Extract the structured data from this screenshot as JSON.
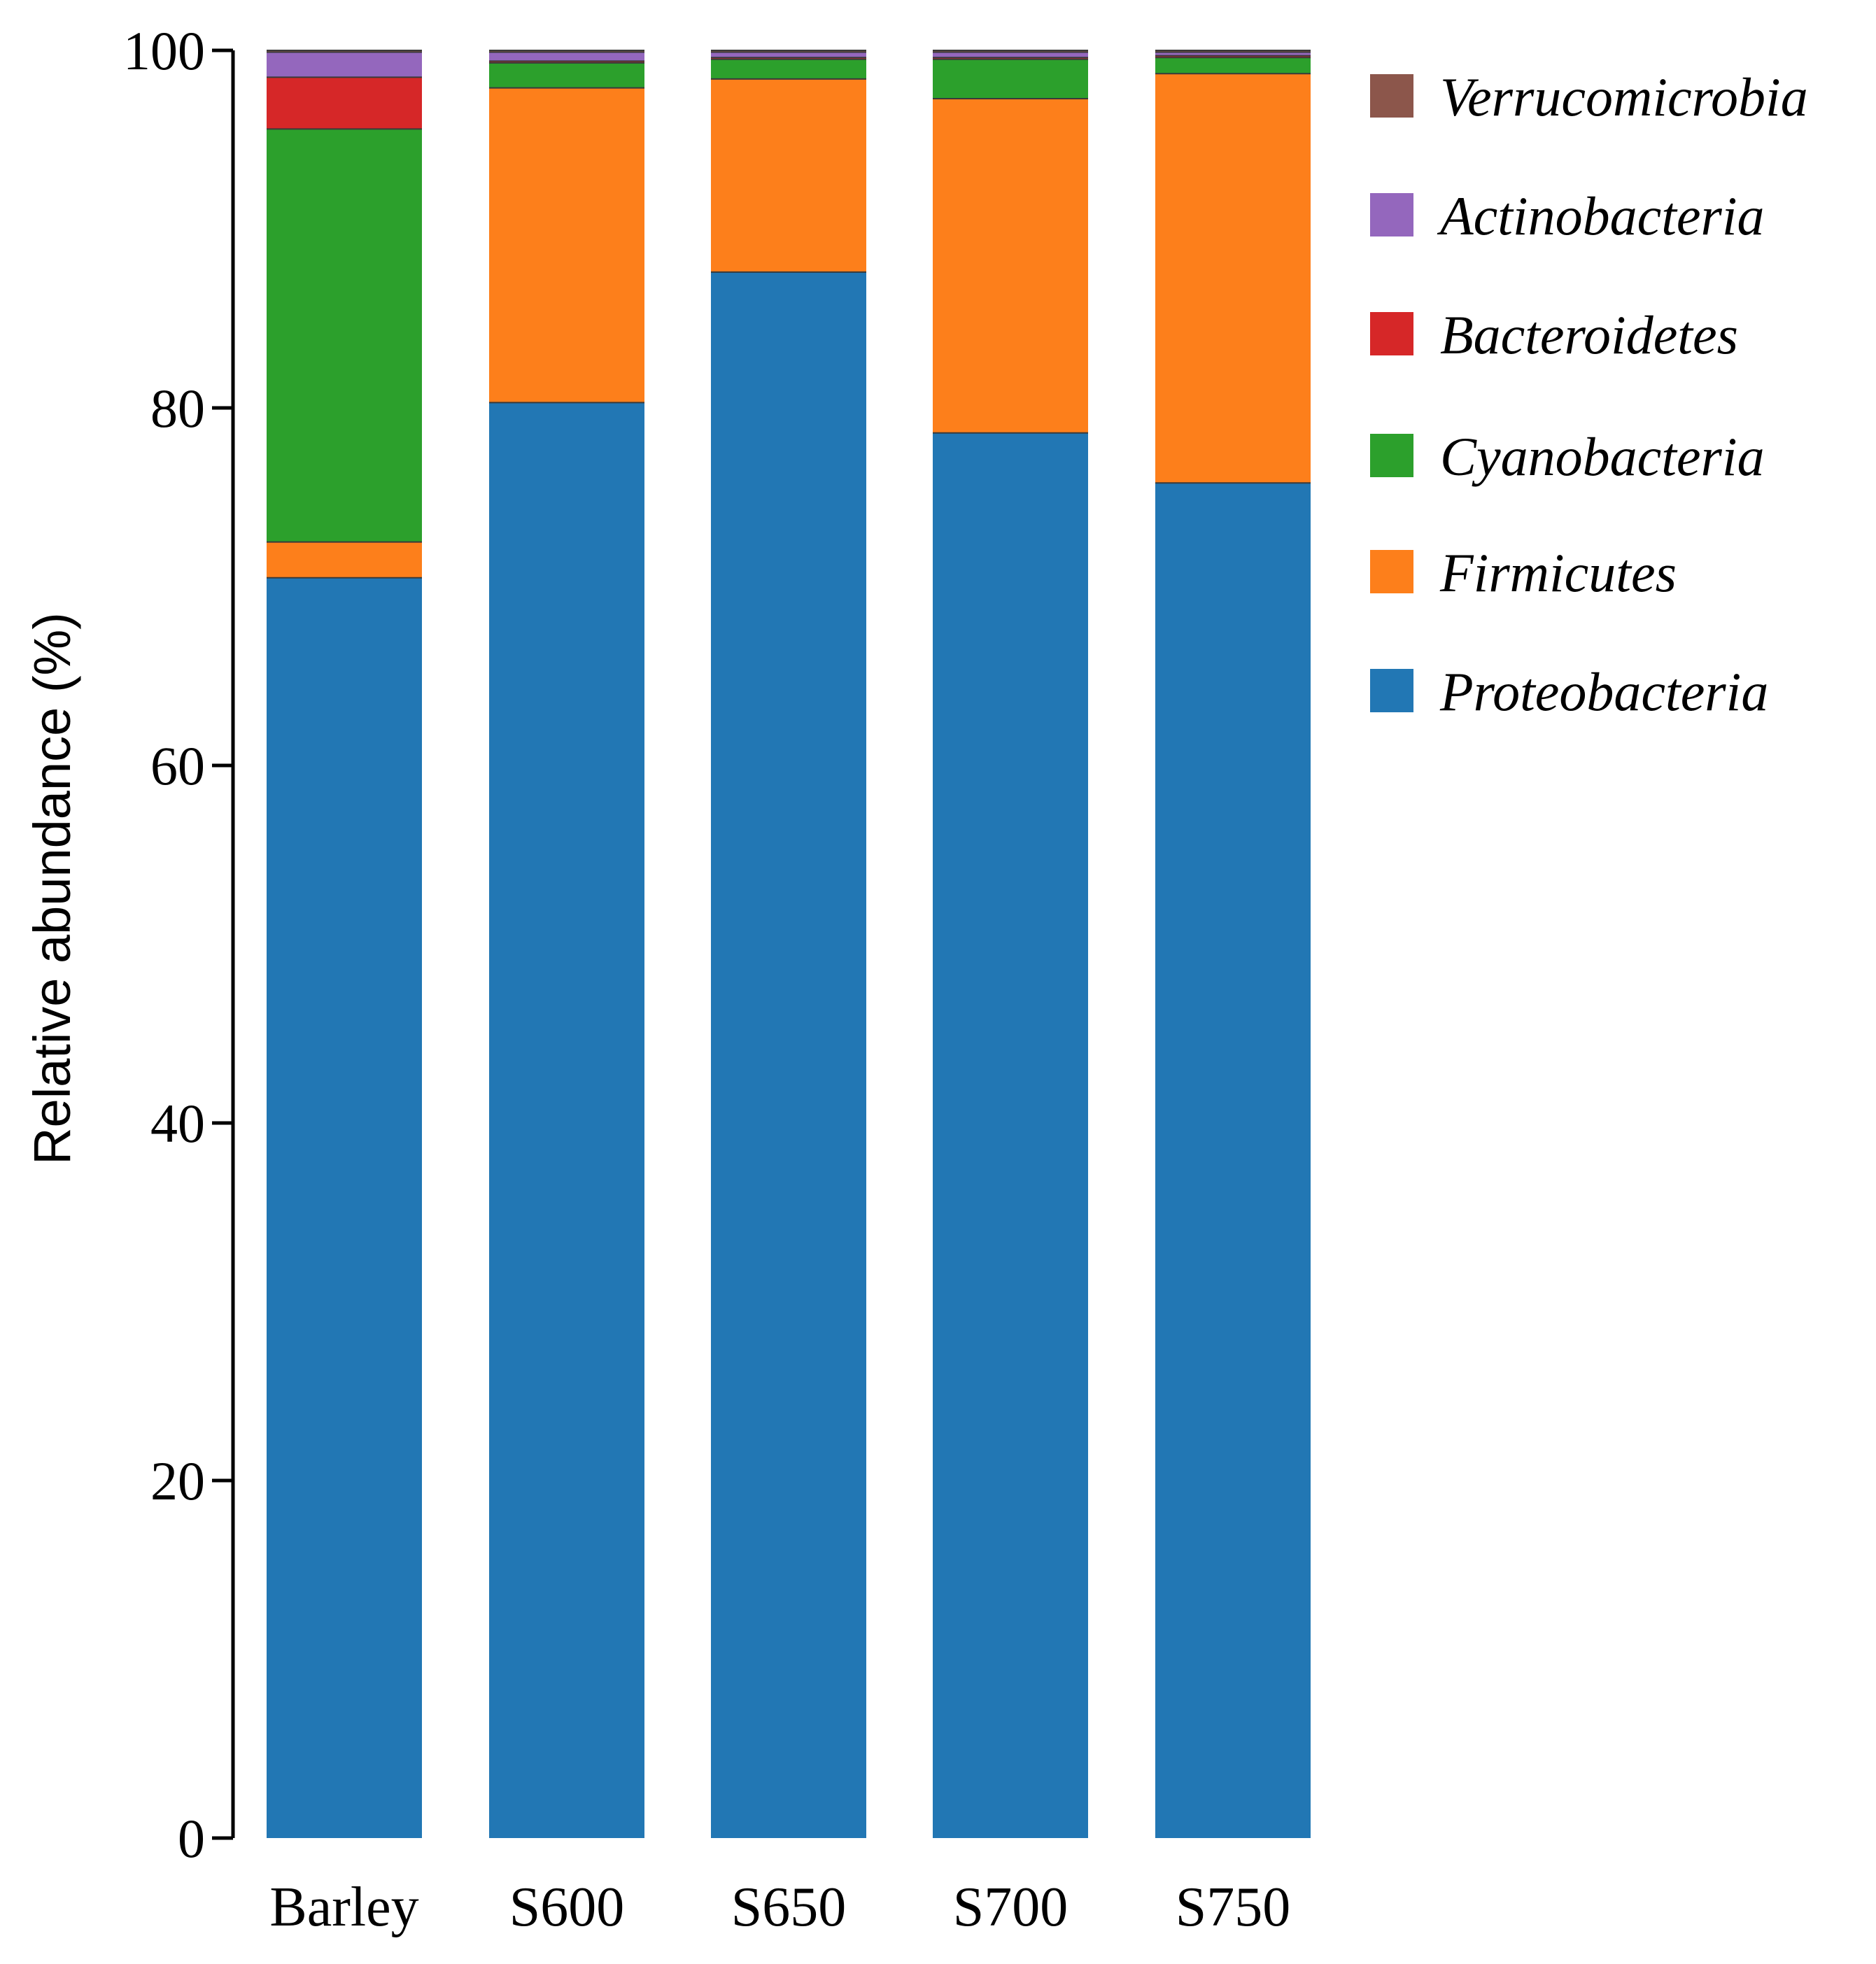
{
  "chart_data": {
    "type": "bar",
    "stacked": true,
    "title": "",
    "xlabel": "",
    "ylabel": "Relative abundance (%)",
    "ylim": [
      0,
      100
    ],
    "yticks": [
      0,
      20,
      40,
      60,
      80,
      100
    ],
    "grid": false,
    "legend_position": "top-right",
    "categories": [
      "Barley",
      "S600",
      "S650",
      "S700",
      "S750"
    ],
    "series": [
      {
        "name": "Proteobacteria",
        "color": "#2277b4",
        "values": [
          70.5,
          80.3,
          87.6,
          78.6,
          75.8
        ]
      },
      {
        "name": "Firmicutes",
        "color": "#fd7f1b",
        "values": [
          2.0,
          17.6,
          10.8,
          18.7,
          22.9
        ]
      },
      {
        "name": "Cyanobacteria",
        "color": "#2ca02c",
        "values": [
          23.1,
          1.4,
          1.1,
          2.2,
          0.9
        ]
      },
      {
        "name": "Bacteroidetes",
        "color": "#d62728",
        "values": [
          2.9,
          0.1,
          0.1,
          0.1,
          0.1
        ]
      },
      {
        "name": "Actinobacteria",
        "color": "#9467bd",
        "values": [
          1.4,
          0.5,
          0.3,
          0.3,
          0.2
        ]
      },
      {
        "name": "Verrucomicrobia",
        "color": "#8c564b",
        "values": [
          0.1,
          0.1,
          0.1,
          0.1,
          0.1
        ]
      }
    ],
    "legend_order": [
      "Verrucomicrobia",
      "Actinobacteria",
      "Bacteroidetes",
      "Cyanobacteria",
      "Firmicutes",
      "Proteobacteria"
    ]
  }
}
